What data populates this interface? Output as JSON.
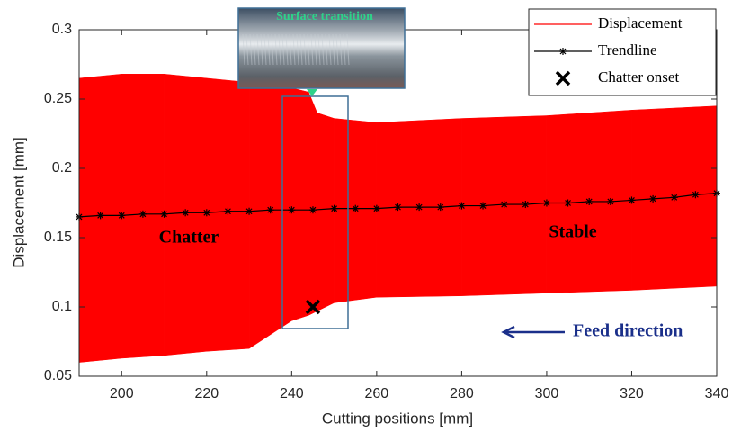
{
  "chart_data": {
    "type": "band-line",
    "x_label": "Cutting positions [mm]",
    "y_label": "Displacement [mm]",
    "xlim": [
      190,
      340
    ],
    "xticks": [
      200,
      220,
      240,
      260,
      280,
      300,
      320,
      340
    ],
    "ylim": [
      0.05,
      0.3
    ],
    "yticks": [
      0.05,
      0.1,
      0.15,
      0.2,
      0.25,
      0.3
    ],
    "legend": "upper right",
    "series": [
      {
        "name": "Displacement",
        "color": "#ff0000",
        "x": [
          190,
          200,
          210,
          220,
          230,
          235,
          240,
          244,
          246,
          250,
          260,
          280,
          300,
          320,
          340
        ],
        "upper": [
          0.265,
          0.268,
          0.268,
          0.265,
          0.262,
          0.26,
          0.258,
          0.255,
          0.24,
          0.236,
          0.233,
          0.236,
          0.238,
          0.242,
          0.245
        ],
        "lower": [
          0.06,
          0.063,
          0.065,
          0.068,
          0.07,
          0.08,
          0.09,
          0.094,
          0.097,
          0.103,
          0.107,
          0.108,
          0.11,
          0.112,
          0.115
        ]
      },
      {
        "name": "Trendline",
        "color": "#000000",
        "x": [
          190,
          195,
          200,
          205,
          210,
          215,
          220,
          225,
          230,
          235,
          240,
          245,
          250,
          255,
          260,
          265,
          270,
          275,
          280,
          285,
          290,
          295,
          300,
          305,
          310,
          315,
          320,
          325,
          330,
          335,
          340
        ],
        "values": [
          0.165,
          0.166,
          0.166,
          0.167,
          0.167,
          0.168,
          0.168,
          0.169,
          0.169,
          0.17,
          0.17,
          0.17,
          0.171,
          0.171,
          0.171,
          0.172,
          0.172,
          0.172,
          0.173,
          0.173,
          0.174,
          0.174,
          0.175,
          0.175,
          0.176,
          0.176,
          0.177,
          0.178,
          0.179,
          0.181,
          0.182
        ]
      },
      {
        "name": "Chatter onset",
        "color": "#000000",
        "x": [
          245
        ],
        "values": [
          0.1
        ]
      }
    ],
    "annotations": [
      "Chatter",
      "Stable",
      "Feed direction",
      "Surface transition"
    ]
  }
}
